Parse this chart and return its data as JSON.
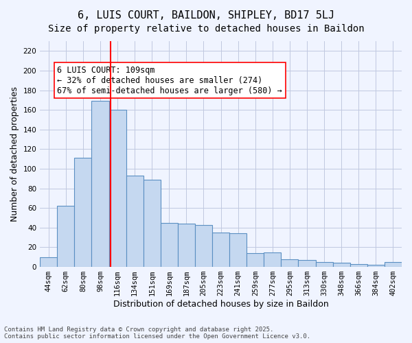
{
  "title": "6, LUIS COURT, BAILDON, SHIPLEY, BD17 5LJ",
  "subtitle": "Size of property relative to detached houses in Baildon",
  "xlabel": "Distribution of detached houses by size in Baildon",
  "ylabel": "Number of detached properties",
  "categories": [
    "44sqm",
    "62sqm",
    "80sqm",
    "98sqm",
    "116sqm",
    "134sqm",
    "151sqm",
    "169sqm",
    "187sqm",
    "205sqm",
    "223sqm",
    "241sqm",
    "259sqm",
    "277sqm",
    "295sqm",
    "313sqm",
    "330sqm",
    "348sqm",
    "366sqm",
    "384sqm",
    "402sqm"
  ],
  "values": [
    10,
    62,
    111,
    169,
    160,
    93,
    89,
    45,
    44,
    43,
    35,
    34,
    14,
    15,
    8,
    7,
    5,
    4,
    3,
    2,
    5
  ],
  "bar_color": "#c5d8f0",
  "bar_edge_color": "#5a8fc2",
  "bar_edge_width": 0.8,
  "red_line_x": 4.0,
  "annotation_text": "6 LUIS COURT: 109sqm\n← 32% of detached houses are smaller (274)\n67% of semi-detached houses are larger (580) →",
  "annotation_box_color": "white",
  "annotation_box_edge_color": "red",
  "ylim": [
    0,
    230
  ],
  "yticks": [
    0,
    20,
    40,
    60,
    80,
    100,
    120,
    140,
    160,
    180,
    200,
    220
  ],
  "bg_color": "#f0f4ff",
  "grid_color": "#c0c8e0",
  "footer_text": "Contains HM Land Registry data © Crown copyright and database right 2025.\nContains public sector information licensed under the Open Government Licence v3.0.",
  "title_fontsize": 11,
  "subtitle_fontsize": 10,
  "axis_label_fontsize": 9,
  "tick_fontsize": 7.5,
  "annotation_fontsize": 8.5,
  "footer_fontsize": 6.5
}
